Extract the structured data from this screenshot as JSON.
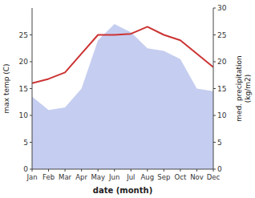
{
  "chart_data": {
    "type": "line",
    "xlabel": "date (month)",
    "ylabel": "max temp (C)",
    "y2label": "med. precipitation\n(kg/m2)",
    "categories": [
      "Jan",
      "Feb",
      "Mar",
      "Apr",
      "May",
      "Jun",
      "Jul",
      "Aug",
      "Sep",
      "Oct",
      "Nov",
      "Dec"
    ],
    "series": [
      {
        "type": "area",
        "axis": "y2",
        "color": "#c5cef0",
        "values": [
          13.5,
          11.0,
          11.5,
          15.0,
          24.0,
          27.0,
          25.5,
          22.5,
          22.0,
          20.5,
          15.0,
          14.5
        ]
      },
      {
        "type": "line",
        "color": "#cc3333",
        "values": [
          16.0,
          16.8,
          18.0,
          21.5,
          25.0,
          25.0,
          25.2,
          26.5,
          25.0,
          24.0,
          21.5,
          19.0
        ]
      }
    ],
    "ylim": [
      0,
      30
    ],
    "yticks": [
      0,
      5,
      10,
      15,
      20,
      25
    ],
    "y2lim": [
      0,
      30
    ],
    "y2ticks": [
      0,
      5,
      10,
      15,
      20,
      25,
      30
    ],
    "grid": false
  }
}
